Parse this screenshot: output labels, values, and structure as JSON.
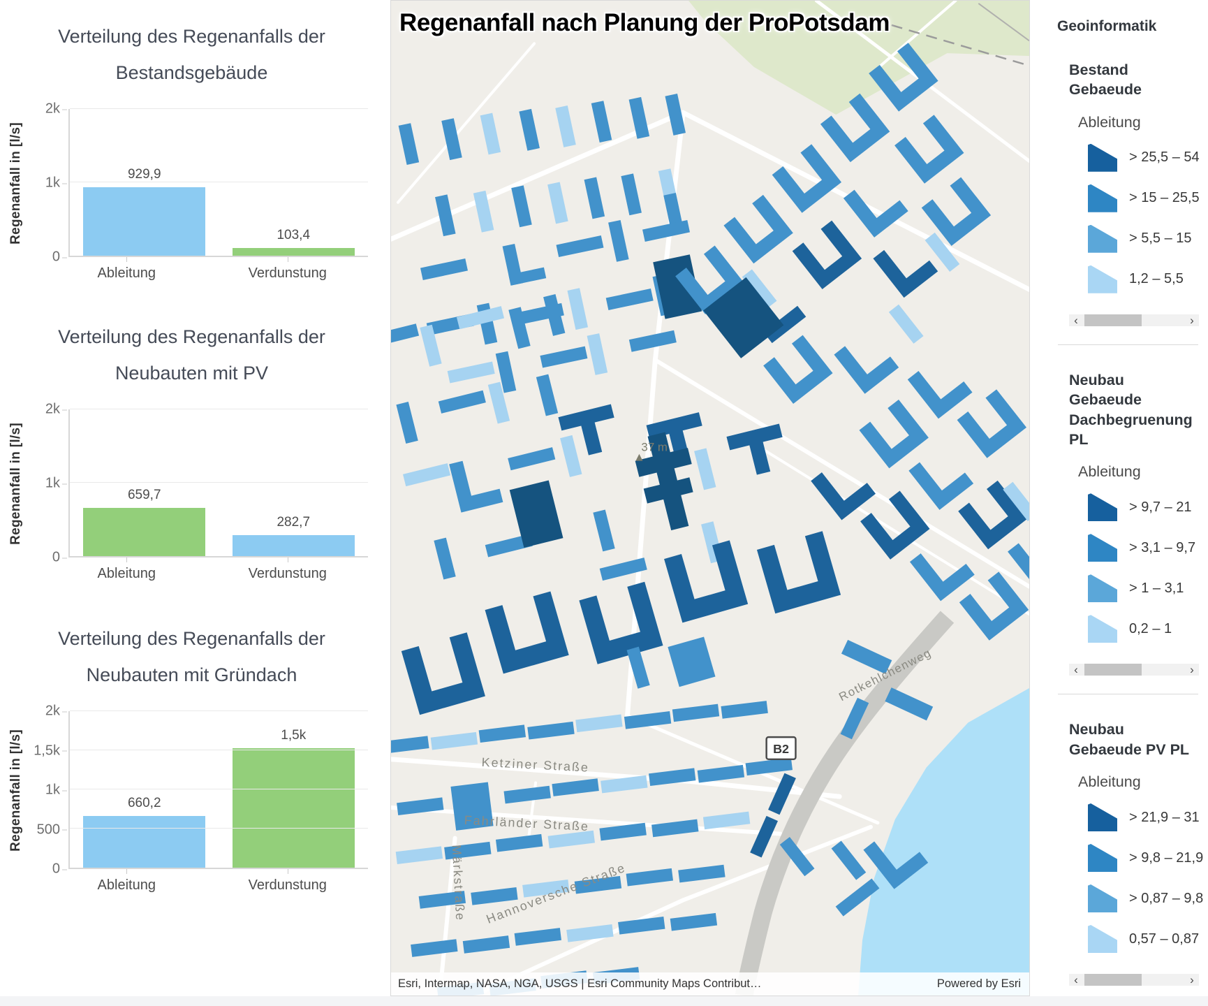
{
  "map": {
    "title": "Regenanfall nach Planung der ProPotsdam",
    "attribution": "Esri, Intermap, NASA, NGA, USGS | Esri Community Maps Contribut…",
    "powered_by": "Powered by Esri",
    "spot_elevation": "37 m",
    "route_shield": "B2",
    "streets": {
      "ketziner": "Ketziner Straße",
      "fahrlaender": "Fahrländer Straße",
      "hannoversche": "Hannoversche Straße",
      "maerk": "Märkstraße",
      "rotkehlchen": "Rotkehlchenweg"
    },
    "colors": {
      "background": "#f0eee9",
      "water": "#aee0f8",
      "park": "#dee8cb",
      "road": "#c9c9c5",
      "building_darkest": "#15537f",
      "building_dark": "#1d639b",
      "building_medium": "#4292cb",
      "building_light": "#a6d3f1"
    }
  },
  "legend": {
    "title": "Geoinformatik",
    "ramp": [
      "#16609e",
      "#2e86c4",
      "#5ba7d9",
      "#a9d6f4"
    ],
    "scroll_left": "‹",
    "scroll_right": "›",
    "groups": [
      {
        "name": "Bestand Gebaeude",
        "sublabel": "Ableitung",
        "classes": [
          {
            "label": "> 25,5 – 54"
          },
          {
            "label": "> 15 – 25,5"
          },
          {
            "label": "> 5,5 – 15"
          },
          {
            "label": "1,2 – 5,5"
          }
        ]
      },
      {
        "name": "Neubau Gebaeude Dachbegruenung PL",
        "sublabel": "Ableitung",
        "classes": [
          {
            "label": "> 9,7 – 21"
          },
          {
            "label": "> 3,1 – 9,7"
          },
          {
            "label": "> 1 – 3,1"
          },
          {
            "label": "0,2 – 1"
          }
        ]
      },
      {
        "name": "Neubau Gebaeude PV PL",
        "sublabel": "Ableitung",
        "classes": [
          {
            "label": "> 21,9 – 31"
          },
          {
            "label": "> 9,8 – 21,9"
          },
          {
            "label": "> 0,87 – 9,8"
          },
          {
            "label": "0,57 – 0,87"
          }
        ]
      }
    ]
  },
  "chart_data": [
    {
      "type": "bar",
      "title": "Verteilung des Regenanfalls der Bestandsgebäude",
      "ylabel": "Regenanfall in [l/s]",
      "ylim": [
        0,
        2000
      ],
      "grid": true,
      "yticks": [
        {
          "v": 0,
          "label": "0"
        },
        {
          "v": 1000,
          "label": "1k"
        },
        {
          "v": 2000,
          "label": "2k"
        }
      ],
      "categories": [
        "Ableitung",
        "Verdunstung"
      ],
      "values": [
        929.9,
        103.4
      ],
      "value_labels": [
        "929,9",
        "103,4"
      ],
      "colors": [
        "#8ccbf2",
        "#93cf7a"
      ]
    },
    {
      "type": "bar",
      "title": "Verteilung des Regenanfalls der Neubauten mit PV",
      "ylabel": "Regenanfall in [l/s]",
      "ylim": [
        0,
        2000
      ],
      "grid": true,
      "yticks": [
        {
          "v": 0,
          "label": "0"
        },
        {
          "v": 1000,
          "label": "1k"
        },
        {
          "v": 2000,
          "label": "2k"
        }
      ],
      "categories": [
        "Ableitung",
        "Verdunstung"
      ],
      "values": [
        659.7,
        282.7
      ],
      "value_labels": [
        "659,7",
        "282,7"
      ],
      "colors": [
        "#93cf7a",
        "#8ccbf2"
      ]
    },
    {
      "type": "bar",
      "title": "Verteilung des Regenanfalls der Neubauten mit Gründach",
      "ylabel": "Regenanfall in [l/s]",
      "ylim": [
        0,
        2000
      ],
      "grid": true,
      "yticks": [
        {
          "v": 0,
          "label": "0"
        },
        {
          "v": 500,
          "label": "500"
        },
        {
          "v": 1000,
          "label": "1k"
        },
        {
          "v": 1500,
          "label": "1,5k"
        },
        {
          "v": 2000,
          "label": "2k"
        }
      ],
      "categories": [
        "Ableitung",
        "Verdunstung"
      ],
      "values": [
        660.2,
        1530
      ],
      "value_labels": [
        "660,2",
        "1,5k"
      ],
      "colors": [
        "#8ccbf2",
        "#93cf7a"
      ]
    }
  ]
}
